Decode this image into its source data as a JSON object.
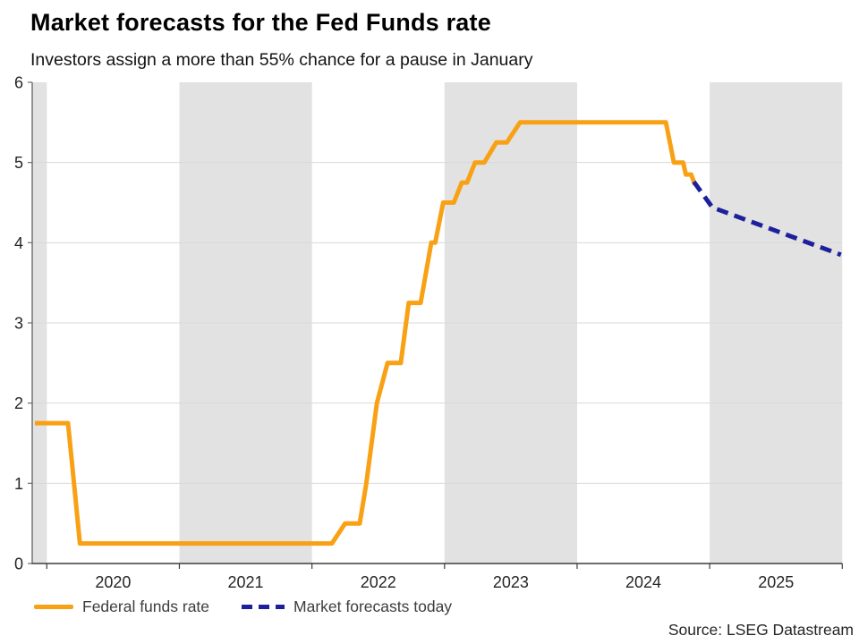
{
  "header": {
    "title": "Market forecasts for the Fed Funds rate",
    "subtitle": "Investors assign a more than 55% chance for a pause in January"
  },
  "legend": {
    "items": [
      {
        "label": "Federal funds rate",
        "style": "solid",
        "color": "#F9A115"
      },
      {
        "label": "Market forecasts today",
        "style": "dashed",
        "color": "#1C209B"
      }
    ]
  },
  "footer": {
    "source": "Source: LSEG Datastream"
  },
  "chart_data": {
    "type": "line",
    "title": "Market forecasts for the Fed Funds rate",
    "subtitle": "Investors assign a more than 55% chance for a pause in January",
    "xlabel": "",
    "ylabel": "",
    "x_range": [
      2019.89,
      2026.0
    ],
    "y_range": [
      0,
      6
    ],
    "y_ticks": [
      0,
      1,
      2,
      3,
      4,
      5,
      6
    ],
    "grid_values": [
      1,
      2,
      3,
      4,
      5
    ],
    "x_boundary_ticks": [
      2020,
      2021,
      2022,
      2023,
      2024,
      2025,
      2026
    ],
    "x_year_labels": [
      "2020",
      "2021",
      "2022",
      "2023",
      "2024",
      "2025"
    ],
    "shaded_year_bands": [
      [
        2019.89,
        2020
      ],
      [
        2021,
        2022
      ],
      [
        2023,
        2024
      ],
      [
        2025,
        2026
      ]
    ],
    "colors": {
      "band": "#E2E2E2",
      "grid": "#D9D9D9",
      "axis_x": "#3D3D3D",
      "axis_y": "#6B6B6B",
      "tick_label": "#262626"
    },
    "legend_position": "bottom-left",
    "series": [
      {
        "name": "Federal funds rate",
        "color": "#F9A115",
        "style": "solid",
        "points": [
          [
            2019.91,
            1.75
          ],
          [
            2020.16,
            1.75
          ],
          [
            2020.19,
            1.25
          ],
          [
            2020.25,
            0.25
          ],
          [
            2022.15,
            0.25
          ],
          [
            2022.25,
            0.5
          ],
          [
            2022.36,
            0.5
          ],
          [
            2022.41,
            1.0
          ],
          [
            2022.49,
            2.0
          ],
          [
            2022.57,
            2.5
          ],
          [
            2022.67,
            2.5
          ],
          [
            2022.73,
            3.25
          ],
          [
            2022.82,
            3.25
          ],
          [
            2022.9,
            4.0
          ],
          [
            2022.93,
            4.0
          ],
          [
            2022.99,
            4.5
          ],
          [
            2023.07,
            4.5
          ],
          [
            2023.13,
            4.75
          ],
          [
            2023.17,
            4.75
          ],
          [
            2023.23,
            5.0
          ],
          [
            2023.3,
            5.0
          ],
          [
            2023.39,
            5.25
          ],
          [
            2023.47,
            5.25
          ],
          [
            2023.57,
            5.5
          ],
          [
            2024.67,
            5.5
          ],
          [
            2024.73,
            5.0
          ],
          [
            2024.8,
            5.0
          ],
          [
            2024.82,
            4.85
          ],
          [
            2024.86,
            4.85
          ],
          [
            2024.89,
            4.72
          ]
        ]
      },
      {
        "name": "Market forecasts today",
        "color": "#1C209B",
        "style": "dashed",
        "points": [
          [
            2024.88,
            4.76
          ],
          [
            2025.02,
            4.44
          ],
          [
            2025.99,
            3.85
          ]
        ]
      }
    ]
  }
}
